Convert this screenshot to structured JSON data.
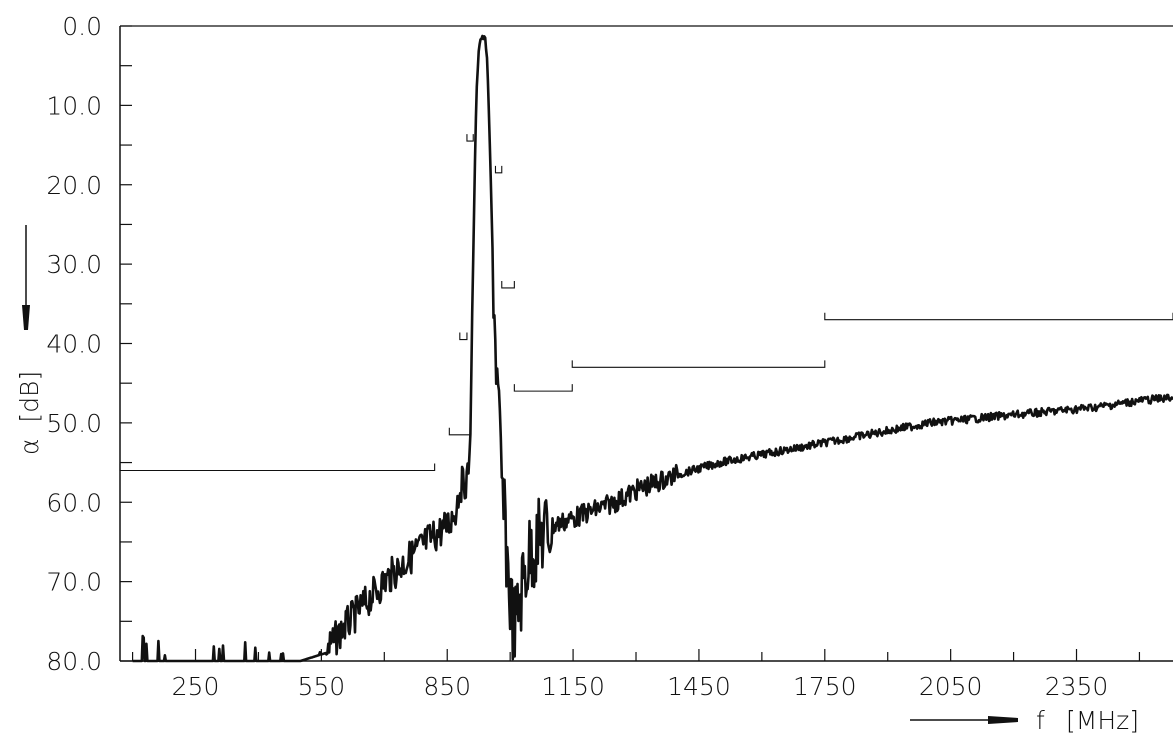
{
  "chart_data": {
    "type": "line",
    "title": "",
    "xlabel": "f [MHz]",
    "ylabel": "α [dB]",
    "x_axis": {
      "label_text": "f",
      "unit_text": "[MHz]",
      "range": [
        70,
        2580
      ],
      "ticks": [
        250,
        550,
        850,
        1150,
        1450,
        1750,
        2050,
        2350
      ],
      "tick_labels": [
        "250",
        "550",
        "850",
        "1150",
        "1450",
        "1750",
        "2050",
        "2350"
      ]
    },
    "y_axis": {
      "label_symbol": "α",
      "unit_text": "[dB]",
      "inverted": true,
      "range": [
        0,
        80
      ],
      "ticks": [
        0,
        10,
        20,
        30,
        40,
        50,
        60,
        70,
        80
      ],
      "tick_labels": [
        "0.0",
        "10.0",
        "20.0",
        "30.0",
        "40.0",
        "50.0",
        "60.0",
        "70.0",
        "80.0"
      ]
    },
    "grid": false,
    "legend": "none",
    "series": [
      {
        "role": "attenuation-response",
        "color": "#111111",
        "x": [
          100,
          200,
          300,
          400,
          500,
          560,
          600,
          650,
          700,
          750,
          800,
          850,
          870,
          880,
          890,
          900,
          905,
          910,
          915,
          920,
          925,
          930,
          935,
          940,
          945,
          950,
          955,
          960,
          965,
          970,
          975,
          980,
          990,
          1000,
          1010,
          1020,
          1030,
          1050,
          1080,
          1100,
          1150,
          1200,
          1250,
          1300,
          1400,
          1500,
          1600,
          1700,
          1800,
          1900,
          2000,
          2100,
          2200,
          2300,
          2400,
          2500,
          2580
        ],
        "y": [
          80,
          80,
          80,
          80,
          80,
          79,
          76,
          73,
          70,
          67.5,
          65,
          63,
          61,
          58,
          57.5,
          57,
          52,
          35,
          20,
          8,
          3,
          1.5,
          1.5,
          1.5,
          4,
          12,
          22,
          32,
          40,
          46,
          52,
          58,
          65,
          72,
          76,
          74,
          70,
          66,
          64,
          63,
          62,
          61,
          60,
          58.5,
          56.5,
          55,
          54,
          53,
          52,
          51,
          50,
          49.5,
          49,
          48.5,
          48,
          47.2,
          46.8
        ]
      }
    ],
    "limit_mask_segments": [
      {
        "x_start": 70,
        "x_end": 820,
        "y": 56
      },
      {
        "x_start": 855,
        "x_end": 905,
        "y": 51.5
      },
      {
        "x_start": 880,
        "x_end": 897,
        "y": 39.5
      },
      {
        "x_start": 897,
        "x_end": 912,
        "y": 14.5
      },
      {
        "x_start": 965,
        "x_end": 980,
        "y": 18.5
      },
      {
        "x_start": 980,
        "x_end": 1010,
        "y": 33
      },
      {
        "x_start": 1010,
        "x_end": 1148,
        "y": 46
      },
      {
        "x_start": 1148,
        "x_end": 1750,
        "y": 43
      },
      {
        "x_start": 1750,
        "x_end": 2580,
        "y": 37
      }
    ]
  },
  "colors": {
    "ink": "#111111",
    "background": "#ffffff"
  }
}
